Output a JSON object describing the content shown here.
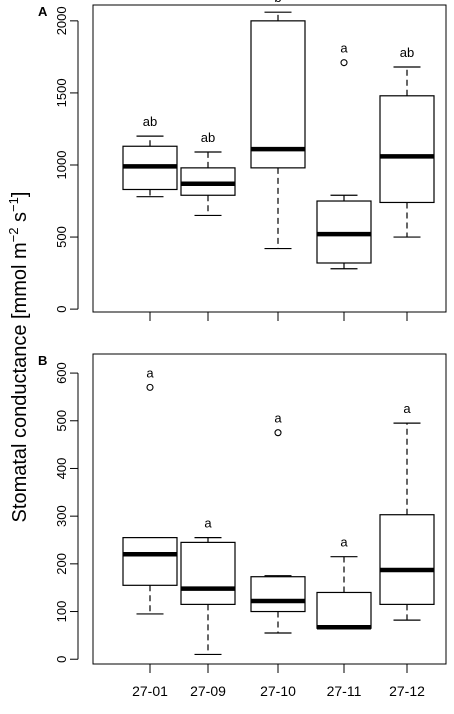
{
  "chart_data": {
    "type": "boxplot",
    "y_label": {
      "text": "Stomatal conductance [mmol m",
      "sup1": "−2",
      "mid": " s",
      "sup2": "−1",
      "end": "]"
    },
    "categories": [
      "27-01",
      "27-09",
      "27-10",
      "27-11",
      "27-12"
    ],
    "panels": [
      {
        "label": "A",
        "ylim": [
          -20,
          2110
        ],
        "yticks": [
          0,
          500,
          1000,
          1500,
          2000
        ],
        "boxes": [
          {
            "category": "27-01",
            "min": 780,
            "q1": 830,
            "median": 990,
            "q3": 1130,
            "max": 1200,
            "outliers": [],
            "sig": "ab"
          },
          {
            "category": "27-09",
            "min": 650,
            "q1": 790,
            "median": 870,
            "q3": 980,
            "max": 1090,
            "outliers": [],
            "sig": "ab"
          },
          {
            "category": "27-10",
            "min": 420,
            "q1": 980,
            "median": 1110,
            "q3": 2000,
            "max": 2060,
            "outliers": [],
            "sig": "b"
          },
          {
            "category": "27-11",
            "min": 280,
            "q1": 320,
            "median": 520,
            "q3": 750,
            "max": 790,
            "outliers": [
              1710
            ],
            "sig": "a"
          },
          {
            "category": "27-12",
            "min": 500,
            "q1": 740,
            "median": 1060,
            "q3": 1480,
            "max": 1680,
            "outliers": [],
            "sig": "ab"
          }
        ]
      },
      {
        "label": "B",
        "ylim": [
          -10,
          640
        ],
        "yticks": [
          0,
          100,
          200,
          300,
          400,
          500,
          600
        ],
        "boxes": [
          {
            "category": "27-01",
            "min": 95,
            "q1": 155,
            "median": 220,
            "q3": 255,
            "max": 255,
            "outliers": [
              570
            ],
            "sig": "a"
          },
          {
            "category": "27-09",
            "min": 10,
            "q1": 115,
            "median": 148,
            "q3": 245,
            "max": 255,
            "outliers": [],
            "sig": "a"
          },
          {
            "category": "27-10",
            "min": 55,
            "q1": 100,
            "median": 122,
            "q3": 173,
            "max": 175,
            "outliers": [
              475
            ],
            "sig": "a"
          },
          {
            "category": "27-11",
            "min": 65,
            "q1": 65,
            "median": 67,
            "q3": 140,
            "max": 215,
            "outliers": [],
            "sig": "a"
          },
          {
            "category": "27-12",
            "min": 82,
            "q1": 115,
            "median": 187,
            "q3": 303,
            "max": 495,
            "outliers": [],
            "sig": "a"
          }
        ]
      }
    ]
  }
}
